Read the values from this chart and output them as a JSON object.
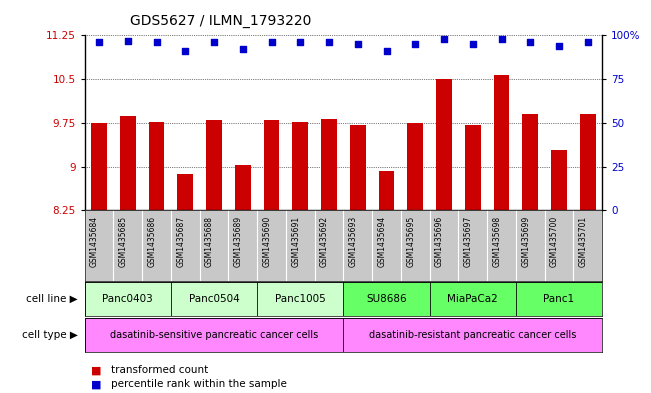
{
  "title": "GDS5627 / ILMN_1793220",
  "samples": [
    "GSM1435684",
    "GSM1435685",
    "GSM1435686",
    "GSM1435687",
    "GSM1435688",
    "GSM1435689",
    "GSM1435690",
    "GSM1435691",
    "GSM1435692",
    "GSM1435693",
    "GSM1435694",
    "GSM1435695",
    "GSM1435696",
    "GSM1435697",
    "GSM1435698",
    "GSM1435699",
    "GSM1435700",
    "GSM1435701"
  ],
  "bar_values": [
    9.75,
    9.86,
    9.77,
    8.88,
    9.8,
    9.03,
    9.8,
    9.77,
    9.82,
    9.72,
    8.92,
    9.75,
    10.51,
    9.72,
    10.57,
    9.9,
    9.28,
    9.9
  ],
  "percentile_values": [
    96,
    97,
    96,
    91,
    96,
    92,
    96,
    96,
    96,
    95,
    91,
    95,
    98,
    95,
    98,
    96,
    94,
    96
  ],
  "ylim_left": [
    8.25,
    11.25
  ],
  "ylim_right": [
    0,
    100
  ],
  "yticks_left": [
    8.25,
    9.0,
    9.75,
    10.5,
    11.25
  ],
  "ytick_labels_left": [
    "8.25",
    "9",
    "9.75",
    "10.5",
    "11.25"
  ],
  "yticks_right": [
    0,
    25,
    50,
    75,
    100
  ],
  "ytick_labels_right": [
    "0",
    "25",
    "50",
    "75",
    "100%"
  ],
  "bar_color": "#cc0000",
  "dot_color": "#0000cc",
  "cell_lines": [
    {
      "label": "Panc0403",
      "start": 0,
      "end": 3,
      "color": "#ccffcc"
    },
    {
      "label": "Panc0504",
      "start": 3,
      "end": 6,
      "color": "#ccffcc"
    },
    {
      "label": "Panc1005",
      "start": 6,
      "end": 9,
      "color": "#ccffcc"
    },
    {
      "label": "SU8686",
      "start": 9,
      "end": 12,
      "color": "#66ff66"
    },
    {
      "label": "MiaPaCa2",
      "start": 12,
      "end": 15,
      "color": "#66ff66"
    },
    {
      "label": "Panc1",
      "start": 15,
      "end": 18,
      "color": "#66ff66"
    }
  ],
  "cell_types": [
    {
      "label": "dasatinib-sensitive pancreatic cancer cells",
      "start": 0,
      "end": 9,
      "color": "#ff88ff"
    },
    {
      "label": "dasatinib-resistant pancreatic cancer cells",
      "start": 9,
      "end": 18,
      "color": "#ff88ff"
    }
  ],
  "legend_bar_label": "transformed count",
  "legend_dot_label": "percentile rank within the sample",
  "cell_line_label": "cell line",
  "cell_type_label": "cell type",
  "bg_color": "#ffffff",
  "xticklabel_bg": "#c8c8c8",
  "title_fontsize": 10
}
